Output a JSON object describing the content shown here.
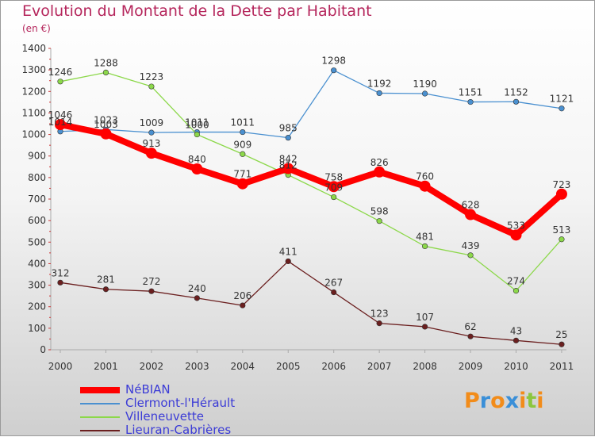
{
  "chart_data": {
    "type": "line",
    "title": "Evolution du Montant de la Dette par Habitant",
    "ylabel": "(en €)",
    "xlabel": "",
    "ylim": [
      0,
      1400
    ],
    "yticks": [
      0,
      100,
      200,
      300,
      400,
      500,
      600,
      700,
      800,
      900,
      1000,
      1100,
      1200,
      1300,
      1400
    ],
    "categories": [
      "2000",
      "2001",
      "2002",
      "2003",
      "2004",
      "2005",
      "2006",
      "2007",
      "2008",
      "2009",
      "2010",
      "2011"
    ],
    "grid": false,
    "legend_position": "bottom-left",
    "series": [
      {
        "name": "NéBIAN",
        "color": "#ff0000",
        "values": [
          1046,
          1003,
          913,
          840,
          771,
          842,
          758,
          826,
          760,
          628,
          533,
          723
        ]
      },
      {
        "name": "Clermont-l'Hérault",
        "color": "#4a90d0",
        "values": [
          1014,
          1023,
          1009,
          1011,
          1011,
          985,
          1298,
          1192,
          1190,
          1151,
          1152,
          1121
        ]
      },
      {
        "name": "Villeneuvette",
        "color": "#8cd84a",
        "values": [
          1246,
          1288,
          1223,
          1000,
          909,
          812,
          709,
          598,
          481,
          439,
          274,
          513
        ]
      },
      {
        "name": "Lieuran-Cabrières",
        "color": "#6b1f1f",
        "values": [
          312,
          281,
          272,
          240,
          206,
          411,
          267,
          123,
          107,
          62,
          43,
          25
        ]
      }
    ]
  },
  "logo": {
    "text": "Proxiti",
    "colors": [
      "#f28c1a",
      "#3a8fd8",
      "#f28c1a",
      "#3a8fd8",
      "#f28c1a",
      "#8cc63f",
      "#f28c1a"
    ]
  }
}
